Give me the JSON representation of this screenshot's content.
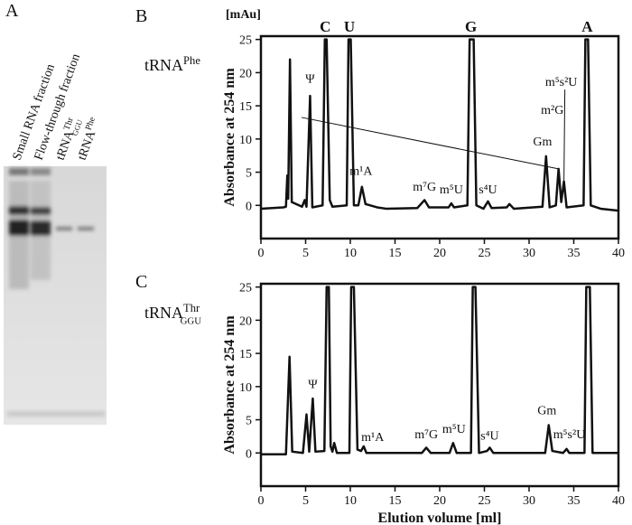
{
  "figure": {
    "panel_labels": [
      "A",
      "B",
      "C"
    ],
    "gel": {
      "lanes": [
        {
          "text": "Small RNA fraction"
        },
        {
          "text": "Flow-through fraction"
        },
        {
          "base": "tRNA",
          "sup": "Thr",
          "sub": "GGU"
        },
        {
          "base": "tRNA",
          "sup": "Phe"
        }
      ]
    }
  },
  "chart_data": [
    {
      "type": "line",
      "unit_label": "[mAu]",
      "title": {
        "base": "tRNA",
        "sup": "Phe"
      },
      "ylabel": "Absorbance at 254 nm",
      "color": "#111111",
      "xlim": [
        0,
        40
      ],
      "ylim": [
        -5,
        25.5
      ],
      "xticks": [
        0,
        5,
        10,
        15,
        20,
        25,
        30,
        35,
        40
      ],
      "yticks": [
        0,
        5,
        10,
        15,
        20,
        25
      ],
      "x": [
        0,
        2.5,
        2.8,
        2.95,
        3.05,
        3.25,
        3.45,
        4.6,
        4.9,
        5.1,
        5.5,
        5.75,
        6.9,
        7.15,
        7.35,
        7.7,
        8,
        9.6,
        9.8,
        10.05,
        10.4,
        10.9,
        11.3,
        11.7,
        13,
        14,
        17.5,
        18.3,
        18.8,
        21,
        21.3,
        21.6,
        23.1,
        23.35,
        23.8,
        24.1,
        24.9,
        25.4,
        25.8,
        27.5,
        27.8,
        28.3,
        31.5,
        31.9,
        32.3,
        33,
        33.3,
        33.6,
        33.9,
        34.2,
        36.1,
        36.3,
        36.6,
        36.9,
        38,
        40
      ],
      "values": [
        -0.5,
        -0.3,
        -0.2,
        4.5,
        1,
        22,
        0.5,
        -0.2,
        0.8,
        -0.2,
        16.5,
        -0.3,
        0,
        25,
        25,
        0.8,
        -0.2,
        0,
        25,
        25,
        0,
        0,
        2.8,
        0.2,
        -0.3,
        -0.5,
        -0.4,
        0.8,
        -0.3,
        -0.3,
        0.3,
        -0.3,
        0,
        25,
        25,
        0,
        -0.5,
        0.6,
        -0.4,
        -0.3,
        0.2,
        -0.5,
        -0.2,
        7.4,
        -0.3,
        0,
        5.5,
        0.5,
        3.6,
        -0.3,
        0,
        25,
        25,
        0,
        -0.5,
        -0.8
      ],
      "top_labels": [
        {
          "text": "C",
          "x": 7.2
        },
        {
          "text": "U",
          "x": 9.9
        },
        {
          "text": "G",
          "x": 23.5
        },
        {
          "text": "A",
          "x": 36.5
        }
      ],
      "annotations": [
        {
          "text": "Ψ",
          "x": 5.5,
          "y": 18.5
        },
        {
          "text": "m¹A",
          "x": 11.2,
          "y": 4.6
        },
        {
          "text": "m⁷G",
          "x": 18.3,
          "y": 2.2
        },
        {
          "text": "m⁵U",
          "x": 21.3,
          "y": 1.8
        },
        {
          "text": "s⁴U",
          "x": 25.4,
          "y": 1.8
        },
        {
          "text": "Gm",
          "x": 31.5,
          "y": 9
        },
        {
          "text": "m²G",
          "x": 32.6,
          "y": 13.8
        },
        {
          "text": "m⁵s²U",
          "x": 33.6,
          "y": 18
        }
      ]
    },
    {
      "type": "line",
      "title": {
        "base": "tRNA",
        "sup": "Thr",
        "sub": "GGU"
      },
      "ylabel": "Absorbance at 254 nm",
      "xlabel": "Elution volume [ml]",
      "color": "#111111",
      "xlim": [
        0,
        40
      ],
      "ylim": [
        -5,
        25.5
      ],
      "xticks": [
        0,
        5,
        10,
        15,
        20,
        25,
        30,
        35,
        40
      ],
      "yticks": [
        0,
        5,
        10,
        15,
        20,
        25
      ],
      "x": [
        0,
        2.8,
        3.2,
        3.5,
        4.7,
        5.1,
        5.4,
        5.8,
        6.1,
        7.1,
        7.35,
        7.6,
        7.8,
        8,
        8.2,
        8.5,
        9.9,
        10.1,
        10.4,
        10.8,
        11.2,
        11.5,
        11.8,
        18,
        18.5,
        19,
        21.1,
        21.5,
        21.9,
        23.5,
        23.7,
        24,
        24.4,
        25.3,
        25.6,
        26,
        31.8,
        32.2,
        32.6,
        33.8,
        34.2,
        34.5,
        36.2,
        36.4,
        36.8,
        37.1,
        40
      ],
      "values": [
        -0.2,
        -0.2,
        14.5,
        0.2,
        0,
        5.8,
        0.2,
        8.2,
        0.2,
        0.3,
        25,
        25,
        1,
        0.2,
        1.5,
        0,
        0,
        25,
        25,
        0.5,
        0.3,
        1,
        0,
        0,
        0.8,
        0,
        0,
        1.5,
        0,
        0,
        25,
        25,
        0,
        0.3,
        0.8,
        0,
        0,
        4.2,
        0.3,
        0,
        0.6,
        0,
        0,
        25,
        25,
        0,
        0
      ],
      "annotations": [
        {
          "text": "Ψ",
          "x": 5.8,
          "y": 9.8
        },
        {
          "text": "m¹A",
          "x": 12.5,
          "y": 1.8
        },
        {
          "text": "m⁷G",
          "x": 18.5,
          "y": 2.2
        },
        {
          "text": "m⁵U",
          "x": 21.6,
          "y": 3
        },
        {
          "text": "s⁴U",
          "x": 25.6,
          "y": 2
        },
        {
          "text": "Gm",
          "x": 32,
          "y": 5.8
        },
        {
          "text": "m⁵s²U",
          "x": 34.5,
          "y": 2.2
        }
      ]
    }
  ]
}
